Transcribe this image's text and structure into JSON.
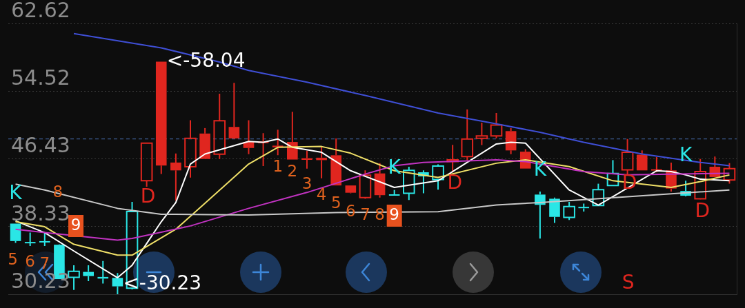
{
  "chart_data": {
    "type": "candlestick",
    "categories": [
      null,
      null,
      null,
      null,
      null,
      null,
      null,
      null,
      null,
      null,
      null,
      null,
      null,
      null,
      null,
      null,
      null,
      null,
      null,
      null,
      null,
      null,
      null,
      null,
      null,
      null,
      null,
      null,
      null,
      null,
      null,
      null,
      null,
      null,
      null,
      null,
      null,
      null,
      null,
      null,
      null,
      null,
      null,
      null,
      null,
      null,
      null,
      null,
      null,
      null
    ],
    "ohlc": [
      [
        38.68,
        38.68,
        36.37,
        36.59
      ],
      [
        36.4,
        37.6,
        36.0,
        36.4
      ],
      [
        36.5,
        37.6,
        36.0,
        36.5
      ],
      [
        36.15,
        36.2,
        32.04,
        32.04
      ],
      [
        32.25,
        33.7,
        30.74,
        32.98
      ],
      [
        32.9,
        33.7,
        31.8,
        32.4
      ],
      [
        32.3,
        34.2,
        31.5,
        32.1
      ],
      [
        32.18,
        32.76,
        30.23,
        31.17
      ],
      [
        30.95,
        41.28,
        30.81,
        40.13
      ],
      [
        43.81,
        48.29,
        43.09,
        48.29
      ],
      [
        58.04,
        58.04,
        44.61,
        45.62
      ],
      [
        45.98,
        47.07,
        41.43,
        45.04
      ],
      [
        45.48,
        51.04,
        44.17,
        48.87
      ],
      [
        49.45,
        50.1,
        46.41,
        46.41
      ],
      [
        46.99,
        54.22,
        46.41,
        50.97
      ],
      [
        50.24,
        55.52,
        48.8,
        48.87
      ],
      [
        48.44,
        51.04,
        46.99,
        47.72
      ],
      [
        48.5,
        49.5,
        45.55,
        48.3
      ],
      [
        48.0,
        49.9,
        46.85,
        47.8
      ],
      [
        48.44,
        52.05,
        46.34,
        46.34
      ],
      [
        46.5,
        47.4,
        45.26,
        46.3
      ],
      [
        46.56,
        47.93,
        44.1,
        46.27
      ],
      [
        46.85,
        48.87,
        43.24,
        43.24
      ],
      [
        43.24,
        43.24,
        42.3,
        42.37
      ],
      [
        41.79,
        45.04,
        41.65,
        44.46
      ],
      [
        44.68,
        45.91,
        41.79,
        42.08
      ],
      [
        42.1,
        42.7,
        42.0,
        42.0
      ],
      [
        42.3,
        45.48,
        41.5,
        45.04
      ],
      [
        44.82,
        45.04,
        42.3,
        44.32
      ],
      [
        43.96,
        45.76,
        42.73,
        45.55
      ],
      [
        46.1,
        48.1,
        44.8,
        46.3
      ],
      [
        46.7,
        52.34,
        46.27,
        48.8
      ],
      [
        48.87,
        50.75,
        48.08,
        49.16
      ],
      [
        49.16,
        51.91,
        48.87,
        50.46
      ],
      [
        49.74,
        50.1,
        46.99,
        47.43
      ],
      [
        47.28,
        47.57,
        45.26,
        45.26
      ],
      [
        42.15,
        42.51,
        36.88,
        40.92
      ],
      [
        41.65,
        41.79,
        38.76,
        39.48
      ],
      [
        39.41,
        41.28,
        39.12,
        40.71
      ],
      [
        40.5,
        41.07,
        40.13,
        40.6
      ],
      [
        40.85,
        43.45,
        40.85,
        42.73
      ],
      [
        43.24,
        46.27,
        43.24,
        44.68
      ],
      [
        45.11,
        48.8,
        44.54,
        47.21
      ],
      [
        46.92,
        47.43,
        45.04,
        45.04
      ],
      [
        45.0,
        46.63,
        44.82,
        45.1
      ],
      [
        45.04,
        45.98,
        42.51,
        42.87
      ],
      [
        42.58,
        43.81,
        41.94,
        42.01
      ],
      [
        41.65,
        46.41,
        41.58,
        44.9
      ],
      [
        45.48,
        46.7,
        44.25,
        44.25
      ],
      [
        43.89,
        45.91,
        43.45,
        45.26
      ]
    ],
    "colors": [
      "#2ae6e6",
      "#2ae6e6",
      "#2ae6e6",
      "#2ae6e6",
      "#2ae6e6",
      "#2ae6e6",
      "#2ae6e6",
      "#2ae6e6",
      "#2ae6e6",
      "#e0261f",
      "#e0261f",
      "#e0261f",
      "#e0261f",
      "#e0261f",
      "#e0261f",
      "#e0261f",
      "#e0261f",
      "#e0261f",
      "#e0261f",
      "#e0261f",
      "#e0261f",
      "#e0261f",
      "#e0261f",
      "#e0261f",
      "#e0261f",
      "#e0261f",
      "#2ae6e6",
      "#2ae6e6",
      "#2ae6e6",
      "#2ae6e6",
      "#e0261f",
      "#e0261f",
      "#e0261f",
      "#e0261f",
      "#e0261f",
      "#e0261f",
      "#2ae6e6",
      "#2ae6e6",
      "#2ae6e6",
      "#2ae6e6",
      "#2ae6e6",
      "#2ae6e6",
      "#e0261f",
      "#e0261f",
      "#e0261f",
      "#e0261f",
      "#2ae6e6",
      "#e0261f",
      "#e0261f",
      "#e0261f"
    ],
    "series": [
      {
        "type": "line",
        "color": "#c8c8c8",
        "values": [
          43.4,
          null,
          42.7,
          null,
          null,
          null,
          null,
          40.5,
          null,
          null,
          39.8,
          null,
          null,
          null,
          null,
          null,
          39.7,
          null,
          null,
          null,
          null,
          null,
          40.0,
          null,
          null,
          null,
          null,
          null,
          null,
          40.1,
          null,
          null,
          null,
          40.9,
          null,
          null,
          41.2,
          null,
          null,
          null,
          null,
          null,
          null,
          null,
          null,
          null,
          null,
          null,
          null,
          42.7
        ]
      },
      {
        "type": "line",
        "color": "#c233c2",
        "values": [
          38.0,
          null,
          37.6,
          null,
          null,
          null,
          null,
          36.7,
          36.9,
          null,
          null,
          null,
          38.4,
          null,
          null,
          null,
          40.5,
          null,
          null,
          null,
          42.4,
          null,
          null,
          null,
          44.6,
          null,
          45.6,
          null,
          46.0,
          null,
          null,
          null,
          null,
          46.3,
          null,
          46.1,
          null,
          null,
          null,
          44.9,
          null,
          null,
          44.5,
          null,
          null,
          null,
          null,
          null,
          null,
          44.7
        ]
      },
      {
        "type": "line",
        "color": "#f0e068",
        "values": [
          38.9,
          null,
          38.3,
          null,
          36.2,
          null,
          null,
          34.9,
          34.9,
          null,
          null,
          38.0,
          null,
          41.1,
          null,
          null,
          45.8,
          null,
          47.8,
          null,
          null,
          47.9,
          null,
          47.1,
          null,
          null,
          45.0,
          null,
          null,
          44.2,
          null,
          null,
          null,
          45.9,
          null,
          46.3,
          null,
          null,
          45.5,
          null,
          null,
          43.8,
          null,
          null,
          null,
          43.0,
          null,
          43.7,
          null,
          44.5
        ]
      },
      {
        "type": "line",
        "color": "#ffffff",
        "values": [
          39.0,
          null,
          37.6,
          null,
          35.4,
          null,
          null,
          32.2,
          33.7,
          36.3,
          38.9,
          41.2,
          45.8,
          47.0,
          null,
          null,
          48.5,
          48.4,
          48.8,
          47.8,
          null,
          47.2,
          null,
          45.0,
          null,
          null,
          43.0,
          null,
          null,
          43.8,
          null,
          46.0,
          null,
          48.2,
          48.4,
          48.3,
          null,
          null,
          42.7,
          null,
          40.9,
          41.9,
          null,
          null,
          45.0,
          44.9,
          44.5,
          44.0,
          null,
          43.8
        ]
      },
      {
        "type": "line",
        "color": "#3f4fd6",
        "values": [
          null,
          null,
          null,
          null,
          61.4,
          null,
          null,
          null,
          null,
          null,
          59.7,
          null,
          null,
          null,
          58.0,
          null,
          57.0,
          null,
          null,
          null,
          55.6,
          null,
          null,
          null,
          54.0,
          null,
          null,
          null,
          null,
          51.9,
          null,
          null,
          null,
          50.6,
          null,
          null,
          49.6,
          null,
          null,
          48.4,
          null,
          null,
          null,
          47.0,
          null,
          null,
          null,
          46.0,
          null,
          45.6
        ]
      }
    ],
    "ylim": [
      30.23,
      62.62
    ],
    "yticks": [
      30.23,
      38.33,
      46.43,
      54.52,
      62.62
    ],
    "grid": "y",
    "ref_lines": [
      {
        "axis": "y",
        "value": 48.8,
        "color": "#4a72b8",
        "line_style": "dashed"
      }
    ],
    "annotations": [
      {
        "text": "<-58.04",
        "y": 58.04
      },
      "<-30.23",
      "K",
      "K",
      "K",
      "K",
      "D",
      "D",
      "D",
      "D",
      "S",
      "5",
      "6",
      "7",
      "8",
      "9",
      "1",
      "2",
      "3",
      "4",
      "5",
      "6",
      "7",
      "8",
      "9"
    ]
  }
}
